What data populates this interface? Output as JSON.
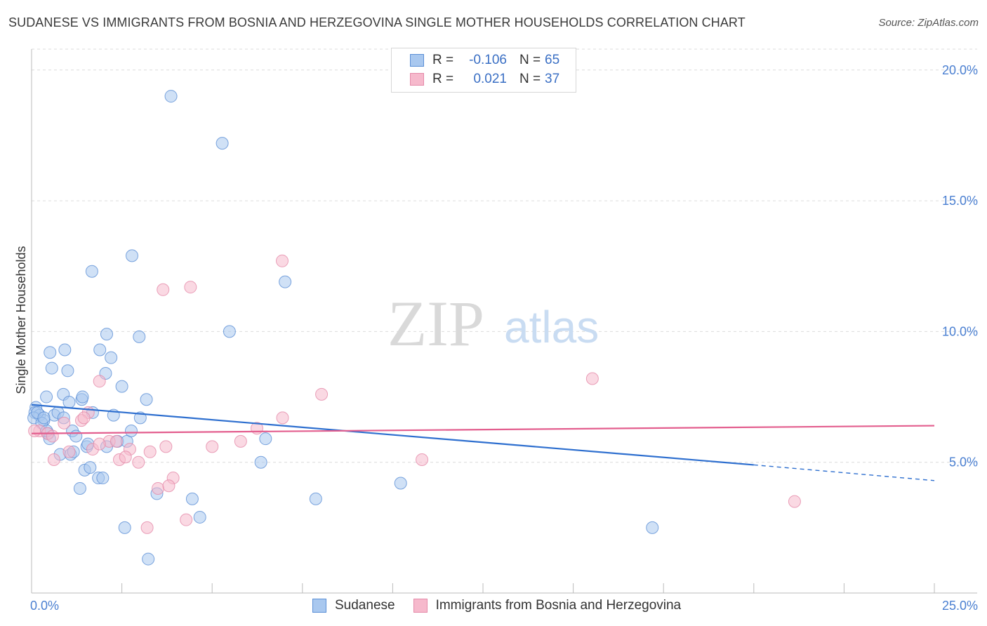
{
  "chart_data": {
    "type": "scatter",
    "title": "SUDANESE VS IMMIGRANTS FROM BOSNIA AND HERZEGOVINA SINGLE MOTHER HOUSEHOLDS CORRELATION CHART",
    "source": "Source: ZipAtlas.com",
    "xlabel": "",
    "ylabel": "Single Mother Households",
    "xlim": [
      0,
      25
    ],
    "ylim": [
      0,
      20.8
    ],
    "x_tick_labels": [
      "0.0%",
      "25.0%"
    ],
    "y_tick_labels": [
      "5.0%",
      "10.0%",
      "15.0%",
      "20.0%"
    ],
    "y_tick_values": [
      5,
      10,
      15,
      20
    ],
    "legend_stats": {
      "r_label": "R =",
      "n_label": "N =",
      "rows": [
        {
          "r": "-0.106",
          "n": "65"
        },
        {
          "r": "0.021",
          "n": "37"
        }
      ]
    },
    "series": [
      {
        "name": "Sudanese",
        "color": "#a9c8ef",
        "stroke": "#5b8fd6",
        "trend_color": "#2e6fcf",
        "trend": {
          "x0": 0,
          "y0": 7.2,
          "x1": 20,
          "y1": 4.9,
          "dash_x1": 25,
          "dash_y1": 4.3
        },
        "points": [
          [
            3.86,
            19.0
          ],
          [
            5.28,
            17.2
          ],
          [
            0.12,
            7.1
          ],
          [
            0.09,
            6.9
          ],
          [
            0.22,
            6.8
          ],
          [
            0.34,
            6.6
          ],
          [
            0.41,
            7.5
          ],
          [
            0.51,
            9.2
          ],
          [
            0.56,
            8.6
          ],
          [
            0.63,
            6.8
          ],
          [
            0.73,
            6.9
          ],
          [
            0.79,
            5.3
          ],
          [
            0.88,
            7.6
          ],
          [
            0.92,
            9.3
          ],
          [
            1.0,
            8.5
          ],
          [
            1.04,
            7.3
          ],
          [
            1.13,
            6.2
          ],
          [
            1.23,
            6.0
          ],
          [
            1.34,
            4.0
          ],
          [
            1.39,
            7.4
          ],
          [
            1.47,
            4.7
          ],
          [
            1.53,
            5.6
          ],
          [
            1.67,
            12.3
          ],
          [
            1.69,
            6.9
          ],
          [
            1.85,
            4.4
          ],
          [
            1.89,
            9.3
          ],
          [
            1.97,
            4.4
          ],
          [
            2.05,
            8.4
          ],
          [
            2.08,
            9.9
          ],
          [
            2.2,
            9.0
          ],
          [
            2.27,
            6.8
          ],
          [
            2.38,
            5.8
          ],
          [
            2.5,
            7.9
          ],
          [
            2.58,
            2.5
          ],
          [
            2.64,
            5.8
          ],
          [
            2.76,
            6.2
          ],
          [
            2.78,
            12.9
          ],
          [
            2.98,
            9.8
          ],
          [
            3.01,
            6.7
          ],
          [
            3.18,
            7.4
          ],
          [
            3.23,
            1.3
          ],
          [
            3.47,
            3.8
          ],
          [
            4.45,
            3.6
          ],
          [
            4.66,
            2.9
          ],
          [
            5.48,
            10.0
          ],
          [
            6.35,
            5.0
          ],
          [
            6.48,
            5.9
          ],
          [
            7.02,
            11.9
          ],
          [
            7.87,
            3.6
          ],
          [
            10.22,
            4.2
          ],
          [
            17.19,
            2.5
          ],
          [
            0.06,
            6.7
          ],
          [
            0.28,
            6.5
          ],
          [
            0.46,
            6.1
          ],
          [
            0.5,
            5.9
          ],
          [
            1.08,
            5.3
          ],
          [
            1.16,
            5.4
          ],
          [
            1.56,
            5.7
          ],
          [
            1.62,
            4.8
          ],
          [
            2.08,
            5.6
          ],
          [
            0.16,
            6.9
          ],
          [
            0.42,
            6.2
          ],
          [
            1.41,
            7.5
          ],
          [
            0.34,
            6.7
          ],
          [
            0.89,
            6.7
          ]
        ]
      },
      {
        "name": "Immigrants from Bosnia and Herzegovina",
        "color": "#f6b9cc",
        "stroke": "#e58aa9",
        "trend_color": "#e35e8e",
        "trend": {
          "x0": 0,
          "y0": 6.1,
          "x1": 25,
          "y1": 6.4
        },
        "points": [
          [
            6.94,
            12.7
          ],
          [
            4.4,
            11.7
          ],
          [
            3.64,
            11.6
          ],
          [
            15.53,
            8.2
          ],
          [
            1.88,
            8.1
          ],
          [
            8.03,
            7.6
          ],
          [
            1.57,
            6.9
          ],
          [
            6.95,
            6.7
          ],
          [
            1.38,
            6.6
          ],
          [
            1.45,
            6.7
          ],
          [
            0.9,
            6.5
          ],
          [
            0.22,
            6.2
          ],
          [
            0.44,
            6.1
          ],
          [
            0.58,
            6.0
          ],
          [
            6.24,
            6.3
          ],
          [
            2.15,
            5.8
          ],
          [
            2.35,
            5.8
          ],
          [
            1.04,
            5.4
          ],
          [
            1.69,
            5.5
          ],
          [
            2.72,
            5.5
          ],
          [
            3.28,
            5.4
          ],
          [
            3.72,
            5.6
          ],
          [
            5.0,
            5.6
          ],
          [
            5.79,
            5.8
          ],
          [
            0.62,
            5.1
          ],
          [
            2.43,
            5.1
          ],
          [
            2.6,
            5.2
          ],
          [
            2.96,
            5.0
          ],
          [
            10.81,
            5.1
          ],
          [
            3.92,
            4.4
          ],
          [
            3.5,
            4.0
          ],
          [
            3.8,
            4.1
          ],
          [
            21.13,
            3.5
          ],
          [
            4.28,
            2.8
          ],
          [
            3.2,
            2.5
          ],
          [
            1.88,
            5.7
          ],
          [
            0.08,
            6.2
          ]
        ]
      }
    ]
  },
  "legend": {
    "items": [
      "Sudanese",
      "Immigrants from Bosnia and Herzegovina"
    ]
  },
  "watermark": {
    "zip": "ZIP",
    "atlas": "atlas"
  }
}
